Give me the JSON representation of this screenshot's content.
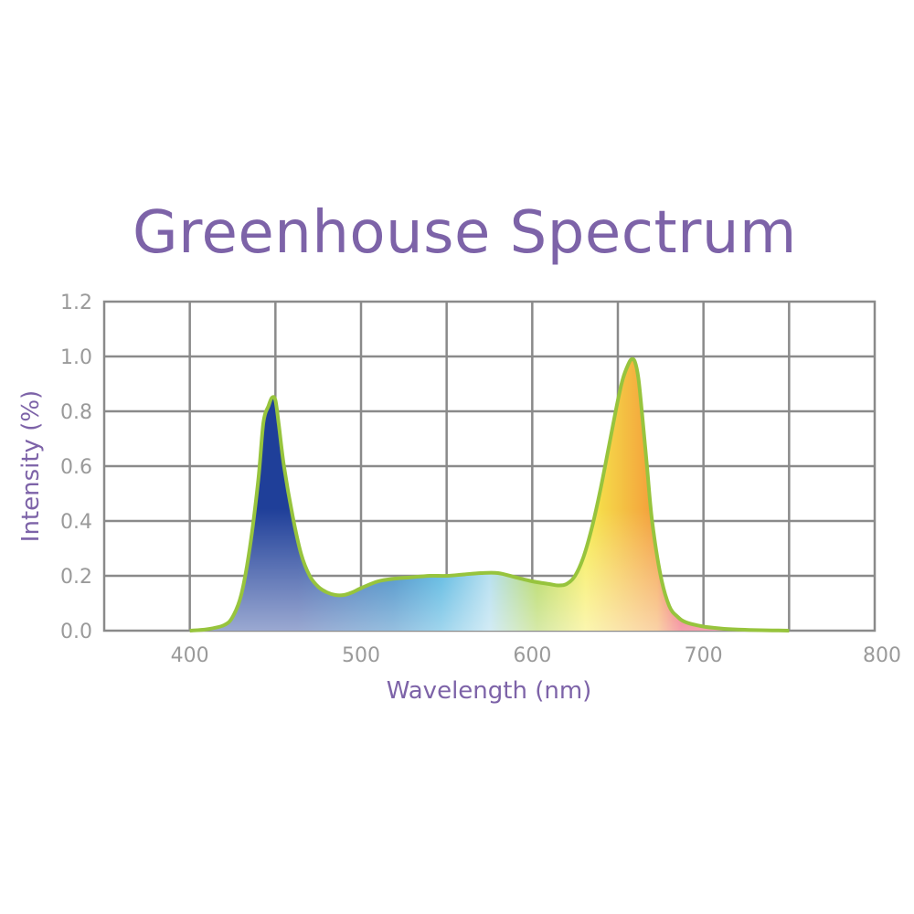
{
  "chart_data": {
    "type": "area",
    "title": "Greenhouse Spectrum",
    "xlabel": "Wavelength (nm)",
    "ylabel": "Intensity (%)",
    "xlim": [
      350,
      800
    ],
    "ylim": [
      0,
      1.2
    ],
    "x_ticks": [
      "400",
      "500",
      "600",
      "700",
      "800"
    ],
    "y_ticks": [
      "0.0",
      "0.2",
      "0.4",
      "0.6",
      "0.8",
      "1.0",
      "1.2"
    ],
    "grid": true,
    "series": [
      {
        "x": [
          400,
          410,
          420,
          425,
          430,
          435,
          440,
          443,
          446,
          448,
          450,
          452,
          455,
          460,
          465,
          470,
          475,
          480,
          485,
          490,
          495,
          500,
          510,
          520,
          530,
          540,
          550,
          560,
          570,
          580,
          590,
          600,
          610,
          615,
          620,
          625,
          630,
          635,
          640,
          645,
          650,
          653,
          656,
          658,
          660,
          662,
          664,
          667,
          670,
          675,
          680,
          685,
          690,
          700,
          710,
          720,
          730,
          740,
          750
        ],
        "y": [
          0.0,
          0.005,
          0.02,
          0.05,
          0.13,
          0.3,
          0.55,
          0.76,
          0.82,
          0.85,
          0.84,
          0.75,
          0.6,
          0.42,
          0.28,
          0.2,
          0.16,
          0.14,
          0.13,
          0.13,
          0.14,
          0.155,
          0.18,
          0.19,
          0.195,
          0.2,
          0.2,
          0.205,
          0.21,
          0.21,
          0.195,
          0.18,
          0.17,
          0.165,
          0.17,
          0.2,
          0.27,
          0.38,
          0.52,
          0.68,
          0.84,
          0.92,
          0.97,
          0.99,
          0.98,
          0.92,
          0.8,
          0.6,
          0.4,
          0.2,
          0.09,
          0.05,
          0.03,
          0.015,
          0.008,
          0.004,
          0.002,
          0.001,
          0.0
        ]
      }
    ],
    "line_color": "#97c43d",
    "fill_gradient": [
      "#1f3f99",
      "#1470b8",
      "#2ba3d8",
      "#9bd3ea",
      "#a3cf3c",
      "#f6eb4d",
      "#f39a3a",
      "#ea2b47",
      "#ea3a5a",
      "#f28eb8"
    ],
    "grid_color": "#8a8a8a"
  }
}
